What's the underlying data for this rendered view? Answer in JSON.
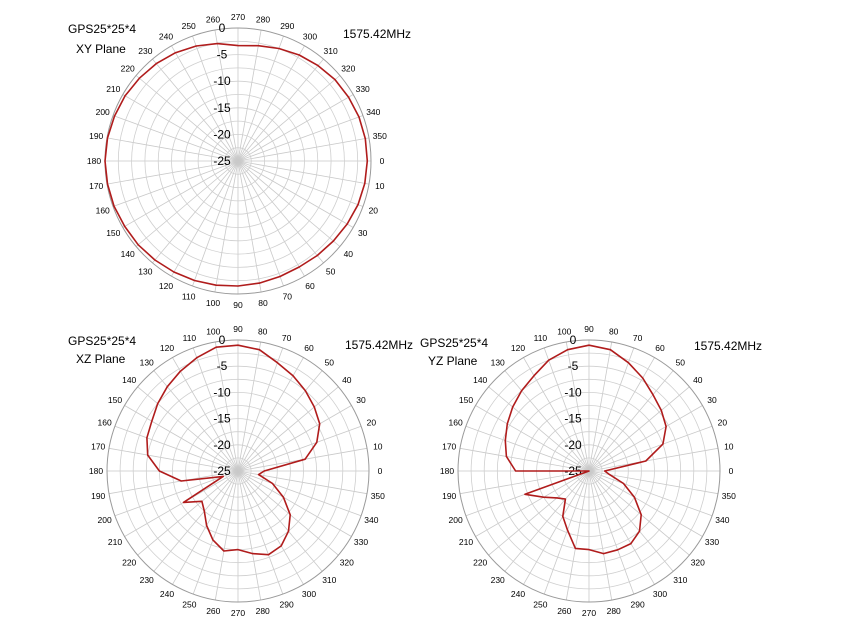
{
  "chart_data": [
    {
      "type": "polar-line",
      "title": "GPS25*25*4",
      "subtitle": "XY Plane",
      "frequency": "1575.42MHz",
      "radial_ticks": [
        "0",
        "-5",
        "-10",
        "-15",
        "-20",
        "-25"
      ],
      "rlim": [
        -25,
        0
      ],
      "angle_ticks": [
        "0",
        "10",
        "20",
        "30",
        "40",
        "50",
        "60",
        "70",
        "80",
        "90",
        "100",
        "110",
        "120",
        "130",
        "140",
        "150",
        "160",
        "170",
        "180",
        "190",
        "200",
        "210",
        "220",
        "230",
        "240",
        "250",
        "260",
        "270",
        "280",
        "290",
        "300",
        "310",
        "320",
        "330",
        "340",
        "350"
      ],
      "angle_zero": "right",
      "angle_direction": "clockwise",
      "grid": true,
      "line_color": "#b01c1c",
      "series": [
        {
          "angles": [
            0,
            10,
            20,
            30,
            40,
            50,
            60,
            70,
            80,
            90,
            100,
            110,
            120,
            130,
            140,
            150,
            160,
            170,
            180,
            190,
            200,
            210,
            220,
            230,
            240,
            250,
            260,
            270,
            280,
            290,
            300,
            310,
            320,
            330,
            340,
            350
          ],
          "values": [
            -0.7,
            -0.8,
            -1.0,
            -1.3,
            -1.6,
            -1.8,
            -2.0,
            -1.9,
            -1.7,
            -1.5,
            -1.3,
            -1.1,
            -0.9,
            -0.7,
            -0.5,
            -0.4,
            -0.2,
            -0.1,
            0,
            -0.1,
            -0.3,
            -0.5,
            -0.8,
            -1.1,
            -1.5,
            -2.0,
            -2.6,
            -3.3,
            -3.0,
            -2.5,
            -2.0,
            -1.6,
            -1.2,
            -1.0,
            -0.8,
            -0.7
          ]
        }
      ]
    },
    {
      "type": "polar-line",
      "title": "GPS25*25*4",
      "subtitle": "XZ Plane",
      "frequency": "1575.42MHz",
      "radial_ticks": [
        "0",
        "-5",
        "-10",
        "-15",
        "-20",
        "-25"
      ],
      "rlim": [
        -25,
        0
      ],
      "angle_ticks": [
        "0",
        "10",
        "20",
        "30",
        "40",
        "50",
        "60",
        "70",
        "80",
        "90",
        "100",
        "110",
        "120",
        "130",
        "140",
        "150",
        "160",
        "170",
        "180",
        "190",
        "200",
        "210",
        "220",
        "230",
        "240",
        "250",
        "260",
        "270",
        "280",
        "290",
        "300",
        "310",
        "320",
        "330",
        "340",
        "350"
      ],
      "angle_zero": "right",
      "angle_direction": "counterclockwise",
      "grid": true,
      "line_color": "#b01c1c",
      "series": [
        {
          "angles": [
            0,
            10,
            20,
            30,
            40,
            50,
            60,
            70,
            80,
            90,
            100,
            110,
            120,
            130,
            140,
            150,
            160,
            170,
            180,
            190,
            200,
            210,
            220,
            230,
            240,
            250,
            260,
            270,
            280,
            290,
            300,
            310,
            320,
            330,
            340,
            350
          ],
          "values": [
            -20,
            -12,
            -9,
            -7,
            -6,
            -5,
            -4,
            -3,
            -1.5,
            -1,
            -1,
            -2,
            -3,
            -4,
            -5,
            -6,
            -6.5,
            -7.5,
            -10,
            -14,
            -22,
            -13,
            -16,
            -15,
            -13,
            -11,
            -9.5,
            -10,
            -9,
            -8,
            -8.5,
            -10,
            -12,
            -15,
            -18,
            -21
          ]
        }
      ]
    },
    {
      "type": "polar-line",
      "title": "GPS25*25*4",
      "subtitle": "YZ Plane",
      "frequency": "1575.42MHz",
      "radial_ticks": [
        "0",
        "-5",
        "-10",
        "-15",
        "-20",
        "-25"
      ],
      "rlim": [
        -25,
        0
      ],
      "angle_ticks": [
        "0",
        "10",
        "20",
        "30",
        "40",
        "50",
        "60",
        "70",
        "80",
        "90",
        "100",
        "110",
        "120",
        "130",
        "140",
        "150",
        "160",
        "170",
        "180",
        "190",
        "200",
        "210",
        "220",
        "230",
        "240",
        "250",
        "260",
        "270",
        "280",
        "290",
        "300",
        "310",
        "320",
        "330",
        "340",
        "350"
      ],
      "angle_zero": "right",
      "angle_direction": "counterclockwise",
      "grid": true,
      "line_color": "#b01c1c",
      "series": [
        {
          "angles": [
            0,
            10,
            20,
            30,
            40,
            50,
            60,
            70,
            80,
            90,
            100,
            110,
            120,
            130,
            140,
            150,
            160,
            170,
            180,
            190,
            200,
            210,
            220,
            230,
            240,
            250,
            260,
            270,
            280,
            290,
            300,
            310,
            320,
            330,
            340,
            350
          ],
          "values": [
            -22,
            -14,
            -10,
            -8,
            -7,
            -6,
            -4.5,
            -3,
            -1.5,
            -1,
            -1.5,
            -2.5,
            -4,
            -5,
            -6,
            -7,
            -8,
            -9,
            -11,
            -25,
            -12,
            -15,
            -17,
            -18,
            -15,
            -13,
            -10,
            -10,
            -9,
            -9,
            -9,
            -10,
            -12,
            -15,
            -18,
            -21
          ]
        }
      ]
    }
  ]
}
